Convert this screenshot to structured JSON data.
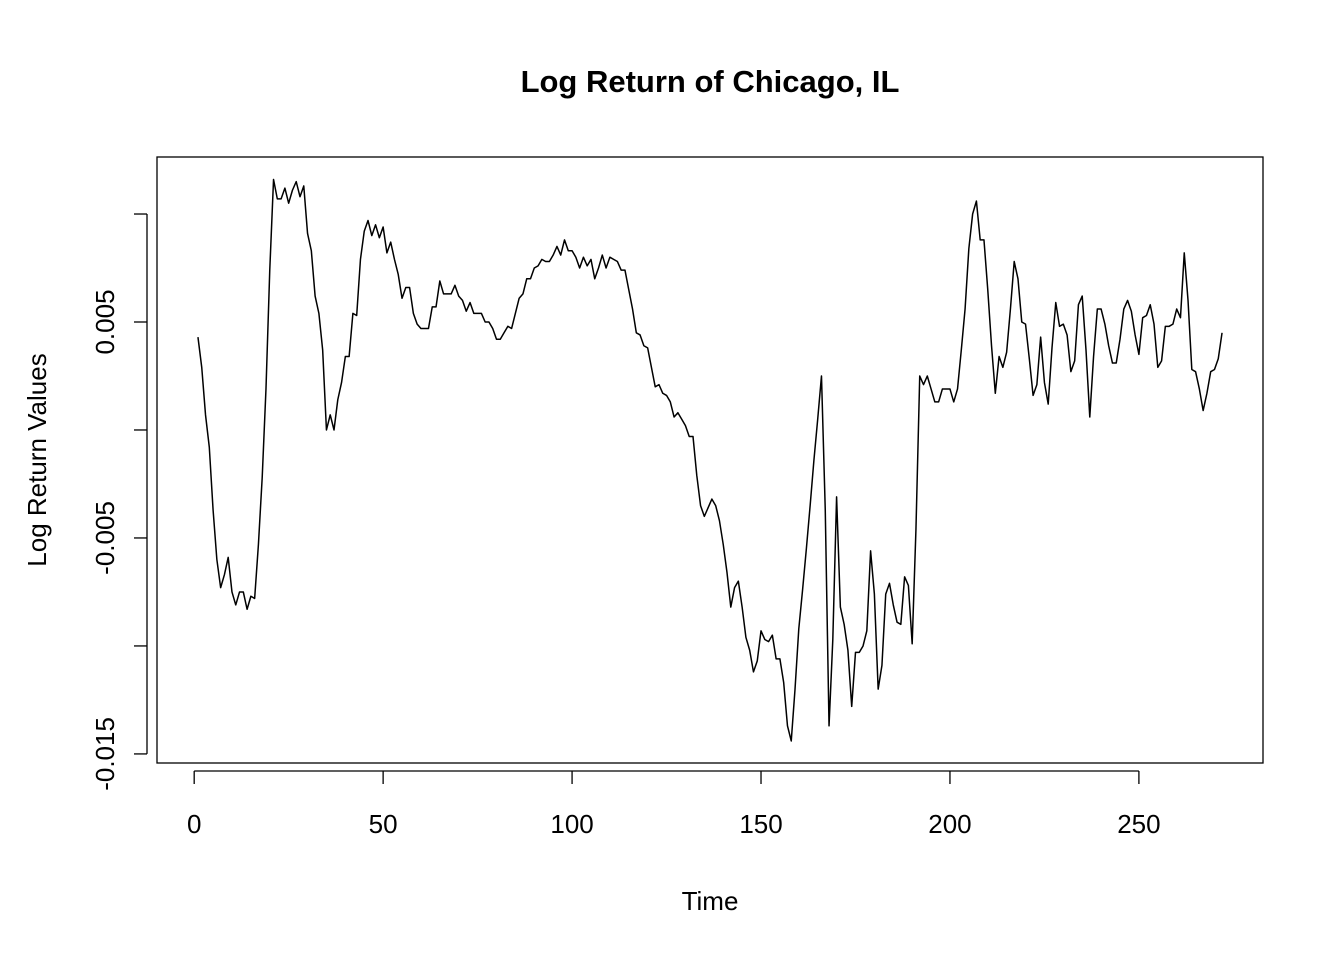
{
  "chart_data": {
    "type": "line",
    "title": "Log Return of Chicago, IL",
    "x_label": "Time",
    "y_label": "Log Return Values",
    "color": "#000000",
    "xlim": [
      -9.84,
      282.84
    ],
    "ylim": [
      -0.01542,
      0.01264
    ],
    "xticks": [
      0,
      50,
      100,
      150,
      200,
      250
    ],
    "yticks": [
      -0.015,
      -0.005,
      0.005
    ],
    "yticks_unlabeled": [
      -0.01,
      0,
      0.01
    ],
    "x": [
      1,
      2,
      3,
      4,
      5,
      6,
      7,
      8,
      9,
      10,
      11,
      12,
      13,
      14,
      15,
      16,
      17,
      18,
      19,
      20,
      21,
      22,
      23,
      24,
      25,
      26,
      27,
      28,
      29,
      30,
      31,
      32,
      33,
      34,
      35,
      36,
      37,
      38,
      39,
      40,
      41,
      42,
      43,
      44,
      45,
      46,
      47,
      48,
      49,
      50,
      51,
      52,
      53,
      54,
      55,
      56,
      57,
      58,
      59,
      60,
      61,
      62,
      63,
      64,
      65,
      66,
      67,
      68,
      69,
      70,
      71,
      72,
      73,
      74,
      75,
      76,
      77,
      78,
      79,
      80,
      81,
      82,
      83,
      84,
      85,
      86,
      87,
      88,
      89,
      90,
      91,
      92,
      93,
      94,
      95,
      96,
      97,
      98,
      99,
      100,
      101,
      102,
      103,
      104,
      105,
      106,
      107,
      108,
      109,
      110,
      111,
      112,
      113,
      114,
      115,
      116,
      117,
      118,
      119,
      120,
      121,
      122,
      123,
      124,
      125,
      126,
      127,
      128,
      129,
      130,
      131,
      132,
      133,
      134,
      135,
      136,
      137,
      138,
      139,
      140,
      141,
      142,
      143,
      144,
      145,
      146,
      147,
      148,
      149,
      150,
      151,
      152,
      153,
      154,
      155,
      156,
      157,
      158,
      159,
      160,
      161,
      162,
      163,
      164,
      165,
      166,
      167,
      168,
      169,
      170,
      171,
      172,
      173,
      174,
      175,
      176,
      177,
      178,
      179,
      180,
      181,
      182,
      183,
      184,
      185,
      186,
      187,
      188,
      189,
      190,
      191,
      192,
      193,
      194,
      195,
      196,
      197,
      198,
      199,
      200,
      201,
      202,
      203,
      204,
      205,
      206,
      207,
      208,
      209,
      210,
      211,
      212,
      213,
      214,
      215,
      216,
      217,
      218,
      219,
      220,
      221,
      222,
      223,
      224,
      225,
      226,
      227,
      228,
      229,
      230,
      231,
      232,
      233,
      234,
      235,
      236,
      237,
      238,
      239,
      240,
      241,
      242,
      243,
      244,
      245,
      246,
      247,
      248,
      249,
      250,
      251,
      252,
      253,
      254,
      255,
      256,
      257,
      258,
      259,
      260,
      261,
      262,
      263,
      264,
      265,
      266,
      267,
      268,
      269,
      270,
      271,
      272
    ],
    "values": [
      0.0043,
      0.0029,
      0.0007,
      -0.0008,
      -0.0037,
      -0.006,
      -0.0073,
      -0.0067,
      -0.0059,
      -0.0075,
      -0.0081,
      -0.0075,
      -0.0075,
      -0.0083,
      -0.0077,
      -0.0078,
      -0.0053,
      -0.0022,
      0.0019,
      0.0074,
      0.0116,
      0.0107,
      0.0107,
      0.0112,
      0.0105,
      0.0111,
      0.0115,
      0.0108,
      0.0113,
      0.0091,
      0.0083,
      0.0062,
      0.0054,
      0.0037,
      0.0,
      0.0007,
      0.0,
      0.0014,
      0.0022,
      0.0034,
      0.0034,
      0.0054,
      0.0053,
      0.0079,
      0.0092,
      0.0097,
      0.009,
      0.0095,
      0.0089,
      0.0094,
      0.0082,
      0.0087,
      0.0079,
      0.0072,
      0.0061,
      0.0066,
      0.0066,
      0.0054,
      0.0049,
      0.0047,
      0.0047,
      0.0047,
      0.0057,
      0.0057,
      0.0069,
      0.0063,
      0.0063,
      0.0063,
      0.0067,
      0.0062,
      0.006,
      0.0055,
      0.0059,
      0.0054,
      0.0054,
      0.0054,
      0.005,
      0.005,
      0.0047,
      0.0042,
      0.0042,
      0.0045,
      0.0048,
      0.0047,
      0.0054,
      0.0061,
      0.0063,
      0.007,
      0.007,
      0.0075,
      0.0076,
      0.0079,
      0.0078,
      0.0078,
      0.0081,
      0.0085,
      0.0081,
      0.0088,
      0.0083,
      0.0083,
      0.008,
      0.0075,
      0.008,
      0.0076,
      0.0079,
      0.007,
      0.0075,
      0.0081,
      0.0075,
      0.008,
      0.0079,
      0.0078,
      0.0074,
      0.0074,
      0.0065,
      0.0056,
      0.0045,
      0.0044,
      0.0039,
      0.0038,
      0.0029,
      0.002,
      0.0021,
      0.0017,
      0.0016,
      0.0013,
      0.0006,
      0.0008,
      0.0005,
      0.0002,
      -0.0003,
      -0.0003,
      -0.0021,
      -0.0035,
      -0.004,
      -0.0036,
      -0.0032,
      -0.0035,
      -0.0042,
      -0.0053,
      -0.0066,
      -0.0082,
      -0.0073,
      -0.007,
      -0.0082,
      -0.0096,
      -0.0102,
      -0.0112,
      -0.0107,
      -0.0093,
      -0.0097,
      -0.0098,
      -0.0095,
      -0.0106,
      -0.0106,
      -0.0117,
      -0.0137,
      -0.0144,
      -0.012,
      -0.0092,
      -0.0074,
      -0.0055,
      -0.0035,
      -0.0014,
      0.0005,
      0.0025,
      -0.0037,
      -0.0137,
      -0.0097,
      -0.0031,
      -0.0082,
      -0.009,
      -0.0102,
      -0.0128,
      -0.0103,
      -0.0103,
      -0.01,
      -0.0093,
      -0.0056,
      -0.0076,
      -0.012,
      -0.0109,
      -0.0076,
      -0.0071,
      -0.0081,
      -0.0089,
      -0.009,
      -0.0068,
      -0.0072,
      -0.0099,
      -0.0046,
      0.0025,
      0.0021,
      0.0025,
      0.0019,
      0.0013,
      0.0013,
      0.0019,
      0.0019,
      0.0019,
      0.0013,
      0.0019,
      0.0037,
      0.0056,
      0.0084,
      0.01,
      0.0106,
      0.0088,
      0.0088,
      0.0065,
      0.0039,
      0.0017,
      0.0034,
      0.0029,
      0.0036,
      0.0056,
      0.0078,
      0.007,
      0.005,
      0.0049,
      0.0033,
      0.0016,
      0.0021,
      0.0043,
      0.0022,
      0.0012,
      0.0038,
      0.0059,
      0.0048,
      0.0049,
      0.0044,
      0.0027,
      0.0032,
      0.0058,
      0.0062,
      0.0037,
      0.0006,
      0.0034,
      0.0056,
      0.0056,
      0.0049,
      0.0039,
      0.0031,
      0.0031,
      0.0042,
      0.0056,
      0.006,
      0.0055,
      0.0044,
      0.0035,
      0.0052,
      0.0053,
      0.0058,
      0.0049,
      0.0029,
      0.0032,
      0.0048,
      0.0048,
      0.0049,
      0.0056,
      0.0052,
      0.0082,
      0.006,
      0.0028,
      0.0027,
      0.0019,
      0.0009,
      0.0017,
      0.0027,
      0.0028,
      0.0033,
      0.0045
    ]
  }
}
